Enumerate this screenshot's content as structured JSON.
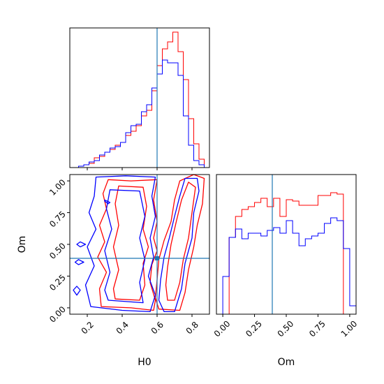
{
  "colors": {
    "series_a": "#ff0000",
    "series_b": "#0000ff",
    "truth": "#1f77b4"
  },
  "truth": {
    "H0": 0.6,
    "Om": 0.39
  },
  "chart_data": [
    {
      "panel": "H0 marginal",
      "type": "step-histogram",
      "xlim": [
        0.1,
        0.9
      ],
      "ylim": [
        0,
        1
      ],
      "x_ticks_labeled": false,
      "bin_edges": [
        0.15,
        0.18,
        0.21,
        0.24,
        0.27,
        0.3,
        0.33,
        0.36,
        0.39,
        0.42,
        0.45,
        0.48,
        0.51,
        0.54,
        0.57,
        0.6,
        0.63,
        0.66,
        0.69,
        0.72,
        0.75,
        0.78,
        0.81,
        0.84,
        0.87
      ],
      "series": [
        {
          "color": "red",
          "values": [
            0.01,
            0.02,
            0.03,
            0.07,
            0.08,
            0.11,
            0.13,
            0.16,
            0.18,
            0.23,
            0.26,
            0.3,
            0.37,
            0.41,
            0.55,
            0.73,
            0.85,
            0.9,
            0.97,
            0.83,
            0.63,
            0.35,
            0.17,
            0.06
          ]
        },
        {
          "color": "blue",
          "values": [
            0.01,
            0.02,
            0.04,
            0.05,
            0.09,
            0.11,
            0.14,
            0.15,
            0.18,
            0.25,
            0.3,
            0.31,
            0.4,
            0.45,
            0.57,
            0.67,
            0.77,
            0.75,
            0.75,
            0.66,
            0.37,
            0.16,
            0.05,
            0.02
          ]
        }
      ]
    },
    {
      "panel": "H0 vs Om",
      "type": "contour",
      "xlim": [
        0.1,
        0.9
      ],
      "ylim": [
        -0.05,
        1.05
      ],
      "x_ticks": [
        "0.2",
        "0.4",
        "0.6",
        "0.8"
      ],
      "y_ticks": [
        "0.00",
        "0.25",
        "0.50",
        "0.75",
        "1.00"
      ],
      "xlabel": "H0",
      "ylabel": "Om",
      "series": [
        {
          "color": "red",
          "contours": [
            [
              [
                0.28,
                0.01
              ],
              [
                0.45,
                0.0
              ],
              [
                0.58,
                -0.02
              ],
              [
                0.59,
                0.06
              ],
              [
                0.56,
                0.2
              ],
              [
                0.57,
                0.34
              ],
              [
                0.6,
                0.45
              ],
              [
                0.58,
                0.55
              ],
              [
                0.6,
                0.68
              ],
              [
                0.58,
                0.85
              ],
              [
                0.6,
                1.01
              ],
              [
                0.45,
                1.0
              ],
              [
                0.32,
                1.01
              ],
              [
                0.29,
                0.9
              ],
              [
                0.31,
                0.78
              ],
              [
                0.27,
                0.65
              ],
              [
                0.3,
                0.52
              ],
              [
                0.26,
                0.4
              ],
              [
                0.31,
                0.28
              ],
              [
                0.27,
                0.15
              ]
            ],
            [
              [
                0.36,
                0.07
              ],
              [
                0.5,
                0.06
              ],
              [
                0.53,
                0.18
              ],
              [
                0.52,
                0.35
              ],
              [
                0.55,
                0.48
              ],
              [
                0.52,
                0.62
              ],
              [
                0.54,
                0.8
              ],
              [
                0.52,
                0.95
              ],
              [
                0.38,
                0.96
              ],
              [
                0.36,
                0.82
              ],
              [
                0.38,
                0.65
              ],
              [
                0.35,
                0.48
              ],
              [
                0.38,
                0.3
              ],
              [
                0.35,
                0.15
              ]
            ],
            [
              [
                0.61,
                -0.01
              ],
              [
                0.73,
                -0.02
              ],
              [
                0.76,
                0.12
              ],
              [
                0.78,
                0.3
              ],
              [
                0.81,
                0.48
              ],
              [
                0.83,
                0.65
              ],
              [
                0.86,
                0.82
              ],
              [
                0.87,
                1.02
              ],
              [
                0.81,
                1.05
              ],
              [
                0.73,
                1.0
              ],
              [
                0.7,
                0.85
              ],
              [
                0.68,
                0.68
              ],
              [
                0.64,
                0.53
              ],
              [
                0.61,
                0.38
              ],
              [
                0.6,
                0.22
              ],
              [
                0.59,
                0.08
              ]
            ],
            [
              [
                0.66,
                0.06
              ],
              [
                0.7,
                0.06
              ],
              [
                0.73,
                0.2
              ],
              [
                0.75,
                0.38
              ],
              [
                0.78,
                0.55
              ],
              [
                0.8,
                0.75
              ],
              [
                0.82,
                0.95
              ],
              [
                0.78,
                0.99
              ],
              [
                0.74,
                0.85
              ],
              [
                0.71,
                0.68
              ],
              [
                0.68,
                0.5
              ],
              [
                0.66,
                0.32
              ],
              [
                0.65,
                0.18
              ]
            ]
          ]
        },
        {
          "color": "blue",
          "contours": [
            [
              [
                0.22,
                0.01
              ],
              [
                0.4,
                -0.02
              ],
              [
                0.56,
                -0.03
              ],
              [
                0.59,
                0.1
              ],
              [
                0.55,
                0.25
              ],
              [
                0.58,
                0.4
              ],
              [
                0.56,
                0.55
              ],
              [
                0.59,
                0.72
              ],
              [
                0.57,
                0.88
              ],
              [
                0.59,
                1.03
              ],
              [
                0.42,
                1.04
              ],
              [
                0.25,
                1.03
              ],
              [
                0.24,
                0.88
              ],
              [
                0.21,
                0.75
              ],
              [
                0.25,
                0.62
              ],
              [
                0.2,
                0.48
              ],
              [
                0.24,
                0.33
              ],
              [
                0.19,
                0.18
              ]
            ],
            [
              [
                0.32,
                0.06
              ],
              [
                0.52,
                0.04
              ],
              [
                0.5,
                0.2
              ],
              [
                0.53,
                0.38
              ],
              [
                0.5,
                0.55
              ],
              [
                0.53,
                0.72
              ],
              [
                0.5,
                0.92
              ],
              [
                0.33,
                0.93
              ],
              [
                0.31,
                0.78
              ],
              [
                0.34,
                0.62
              ],
              [
                0.3,
                0.45
              ],
              [
                0.33,
                0.28
              ],
              [
                0.3,
                0.14
              ]
            ],
            [
              [
                0.64,
                -0.03
              ],
              [
                0.7,
                -0.03
              ],
              [
                0.74,
                0.15
              ],
              [
                0.76,
                0.35
              ],
              [
                0.8,
                0.55
              ],
              [
                0.81,
                0.75
              ],
              [
                0.84,
                0.92
              ],
              [
                0.83,
                1.02
              ],
              [
                0.76,
                1.02
              ],
              [
                0.73,
                0.88
              ],
              [
                0.7,
                0.72
              ],
              [
                0.67,
                0.55
              ],
              [
                0.64,
                0.4
              ],
              [
                0.62,
                0.22
              ],
              [
                0.61,
                0.06
              ]
            ],
            [
              [
                0.3,
                0.85
              ],
              [
                0.33,
                0.83
              ],
              [
                0.32,
                0.82
              ],
              [
                0.3,
                0.84
              ]
            ],
            [
              [
                0.16,
                0.52
              ],
              [
                0.19,
                0.5
              ],
              [
                0.16,
                0.48
              ],
              [
                0.14,
                0.5
              ]
            ],
            [
              [
                0.15,
                0.38
              ],
              [
                0.18,
                0.36
              ],
              [
                0.15,
                0.34
              ],
              [
                0.13,
                0.36
              ]
            ],
            [
              [
                0.14,
                0.17
              ],
              [
                0.16,
                0.14
              ],
              [
                0.14,
                0.1
              ],
              [
                0.12,
                0.14
              ]
            ]
          ]
        }
      ]
    },
    {
      "panel": "Om marginal",
      "type": "step-histogram",
      "xlim": [
        -0.05,
        1.05
      ],
      "ylim": [
        0,
        1
      ],
      "x_ticks": [
        "0.00",
        "0.25",
        "0.50",
        "0.75",
        "1.00"
      ],
      "xlabel": "Om",
      "bin_edges": [
        -0.05,
        0.0,
        0.05,
        0.1,
        0.15,
        0.2,
        0.25,
        0.3,
        0.35,
        0.4,
        0.45,
        0.5,
        0.55,
        0.6,
        0.65,
        0.7,
        0.75,
        0.8,
        0.85,
        0.9,
        0.95,
        1.0,
        1.05
      ],
      "series": [
        {
          "color": "red",
          "values": [
            0.0,
            0.0,
            0.55,
            0.7,
            0.75,
            0.77,
            0.8,
            0.83,
            0.77,
            0.83,
            0.7,
            0.82,
            0.81,
            0.78,
            0.78,
            0.78,
            0.85,
            0.85,
            0.87,
            0.86,
            0.0,
            0.0
          ]
        },
        {
          "color": "blue",
          "values": [
            0.0,
            0.27,
            0.55,
            0.61,
            0.54,
            0.58,
            0.58,
            0.56,
            0.6,
            0.62,
            0.58,
            0.67,
            0.58,
            0.49,
            0.54,
            0.56,
            0.58,
            0.65,
            0.69,
            0.67,
            0.47,
            0.06
          ]
        }
      ]
    }
  ]
}
